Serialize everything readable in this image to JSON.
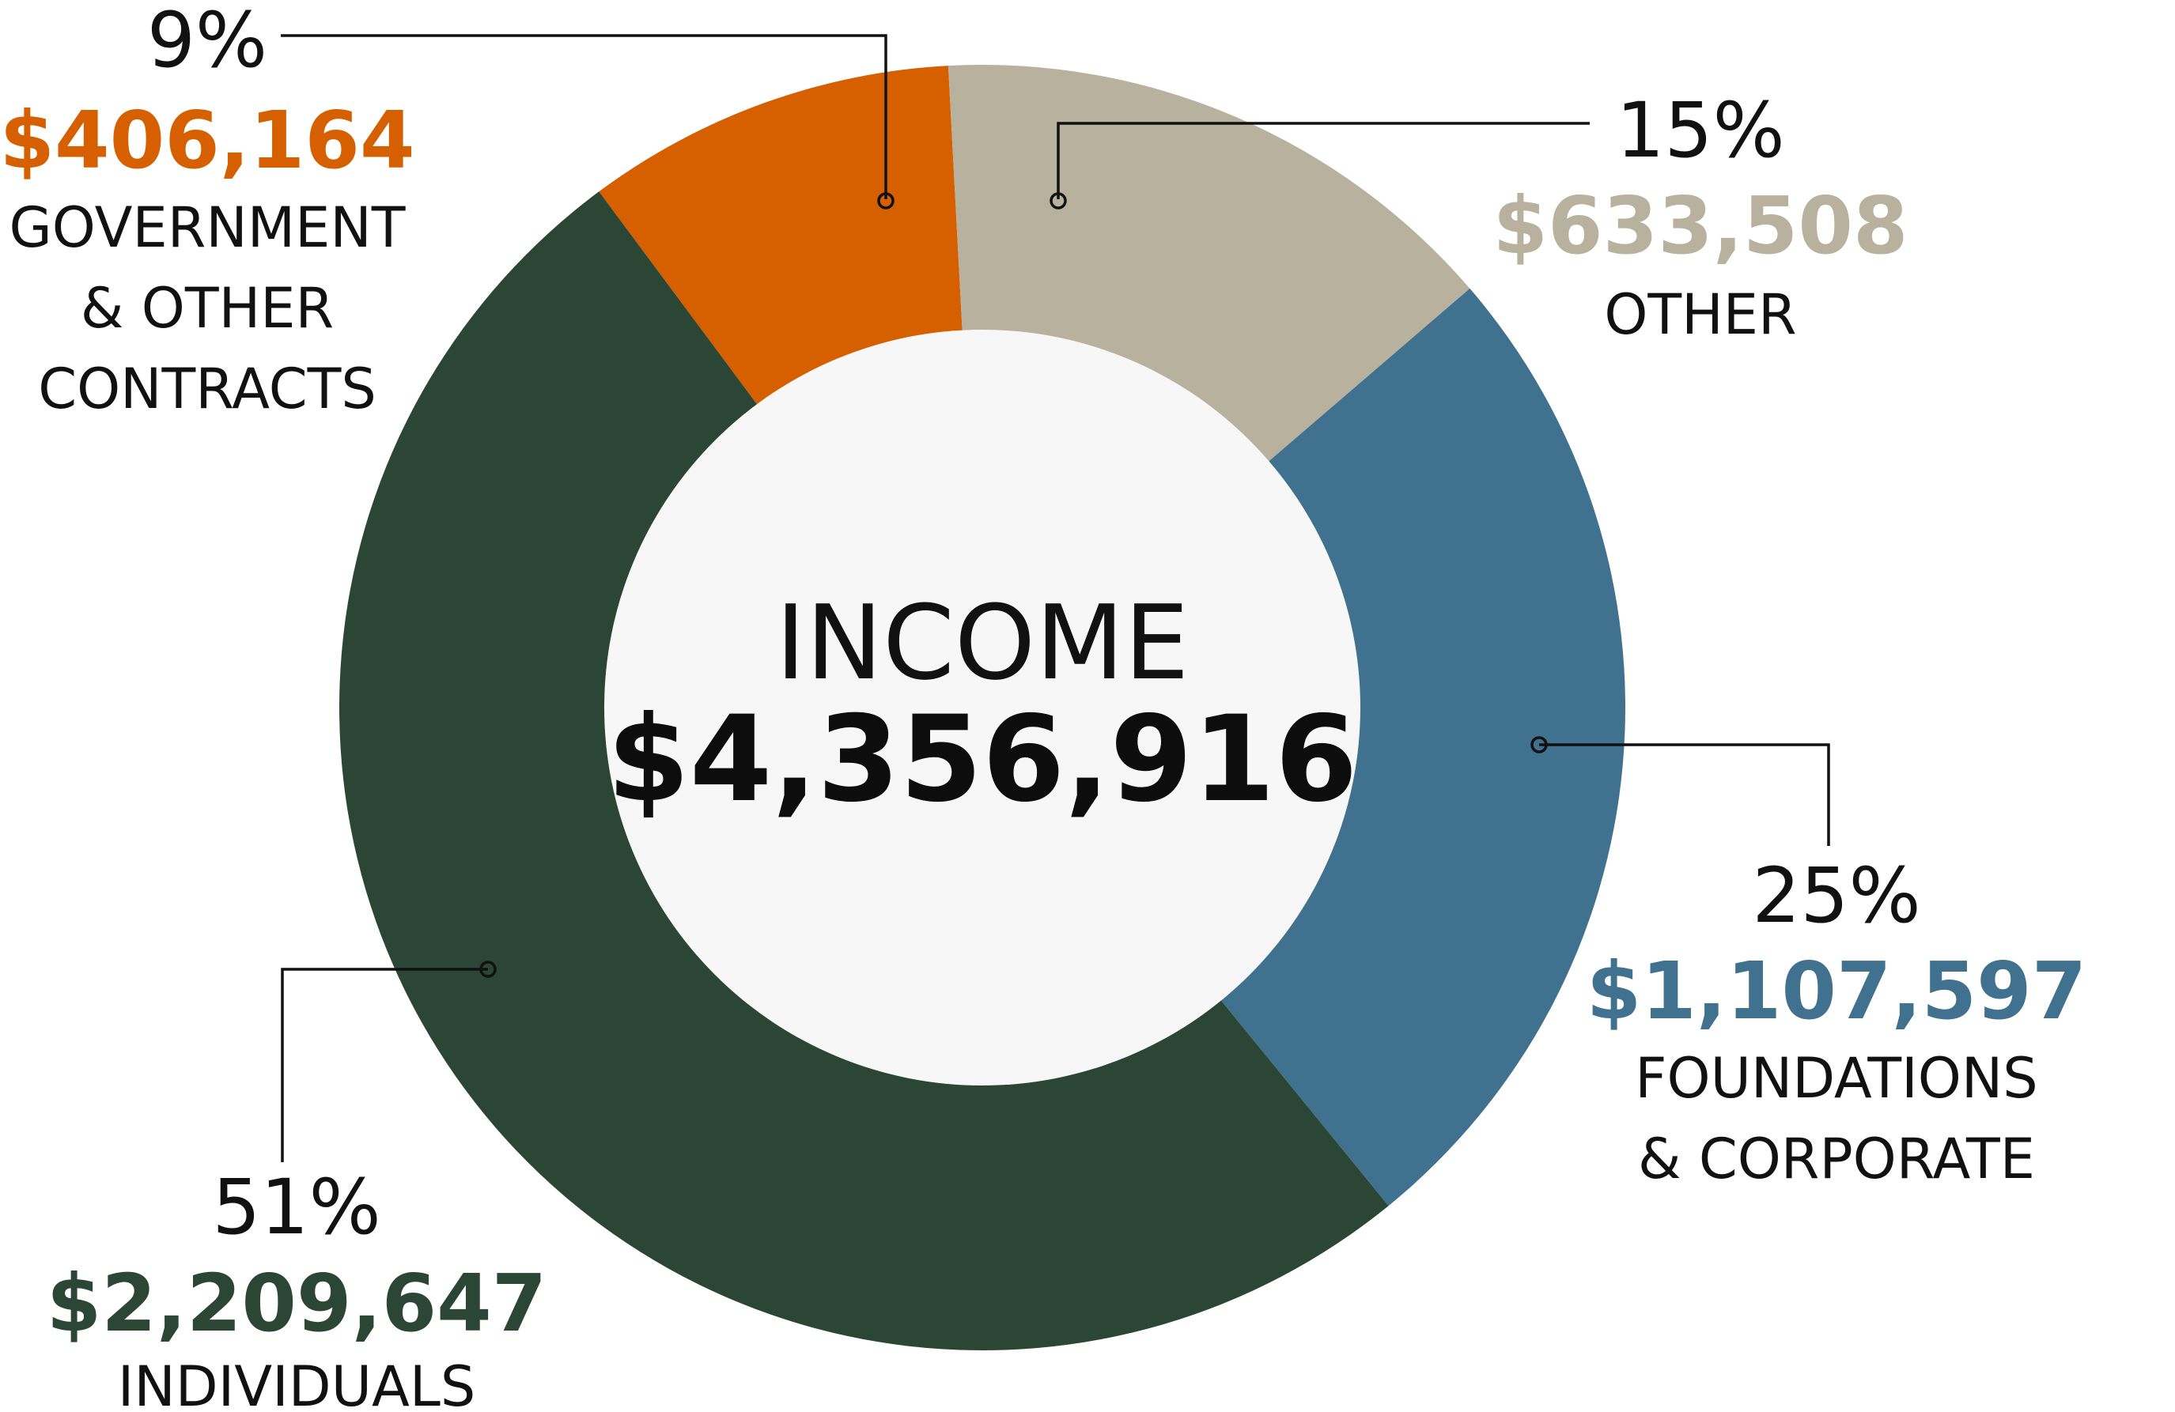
{
  "chart_data": {
    "type": "pie",
    "donut": true,
    "center": {
      "title": "INCOME",
      "total": "$4,356,916"
    },
    "slices": [
      {
        "percent_label": "9%",
        "amount_label": "$406,164",
        "value": 406164,
        "category_lines": [
          "GOVERNMENT",
          "& OTHER",
          "CONTRACTS"
        ],
        "color": "#d65f00"
      },
      {
        "percent_label": "15%",
        "amount_label": "$633,508",
        "value": 633508,
        "category_lines": [
          "OTHER"
        ],
        "color": "#b8b19e"
      },
      {
        "percent_label": "25%",
        "amount_label": "$1,107,597",
        "value": 1107597,
        "category_lines": [
          "FOUNDATIONS",
          "& CORPORATE"
        ],
        "color": "#40718f"
      },
      {
        "percent_label": "51%",
        "amount_label": "$2,209,647",
        "value": 2209647,
        "category_lines": [
          "INDIVIDUALS"
        ],
        "color": "#2c4636"
      }
    ],
    "hole_color": "#f7f7f7"
  }
}
